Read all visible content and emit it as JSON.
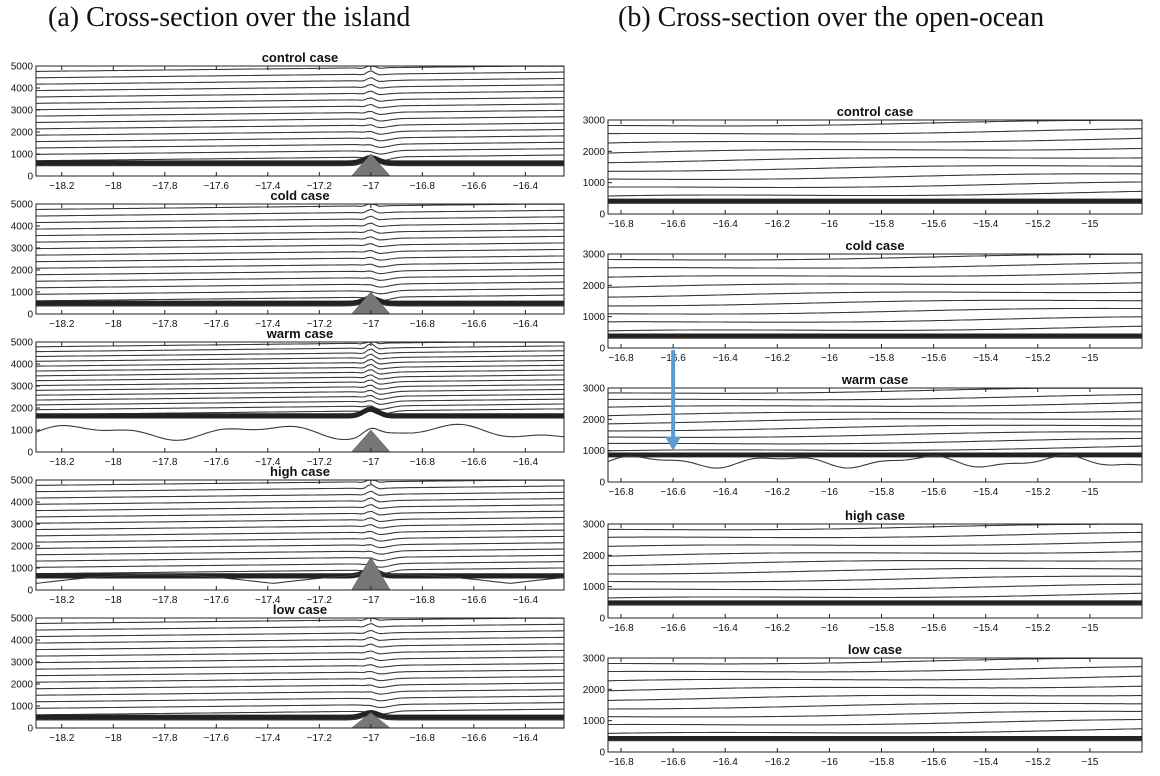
{
  "headings": {
    "left": "(a) Cross-section over the island",
    "right": "(b) Cross-section over the open-ocean"
  },
  "colors": {
    "contour": "#3a3a3a",
    "mountain": "#777777",
    "arrow": "#5b9bd5"
  },
  "chart_data": [
    {
      "id": "a-control",
      "column": "left",
      "type": "contour",
      "title": "control case",
      "x_ticks": [
        -18.2,
        -18,
        -17.8,
        -17.6,
        -17.4,
        -17.2,
        -17,
        -16.8,
        -16.6,
        -16.4
      ],
      "xlim": [
        -18.3,
        -16.25
      ],
      "y_ticks": [
        0,
        1000,
        2000,
        3000,
        4000,
        5000
      ],
      "ylim": [
        0,
        5000
      ],
      "inversion_height": 650,
      "inversion_profile": "flat",
      "island_center": -17.0,
      "island_peak": 1000,
      "wave_amplitude": 350
    },
    {
      "id": "a-cold",
      "column": "left",
      "type": "contour",
      "title": "cold case",
      "x_ticks": [
        -18.2,
        -18,
        -17.8,
        -17.6,
        -17.4,
        -17.2,
        -17,
        -16.8,
        -16.6,
        -16.4
      ],
      "xlim": [
        -18.3,
        -16.25
      ],
      "y_ticks": [
        0,
        1000,
        2000,
        3000,
        4000,
        5000
      ],
      "ylim": [
        0,
        5000
      ],
      "inversion_height": 550,
      "inversion_profile": "flat",
      "island_center": -17.0,
      "island_peak": 1000,
      "wave_amplitude": 330
    },
    {
      "id": "a-warm",
      "column": "left",
      "type": "contour",
      "title": "warm case",
      "x_ticks": [
        -18.2,
        -18,
        -17.8,
        -17.6,
        -17.4,
        -17.2,
        -17,
        -16.8,
        -16.6,
        -16.4
      ],
      "xlim": [
        -18.3,
        -16.25
      ],
      "y_ticks": [
        0,
        1000,
        2000,
        3000,
        4000,
        5000
      ],
      "ylim": [
        0,
        5000
      ],
      "inversion_height": 1700,
      "inversion_profile": "wavy-low",
      "island_center": -17.0,
      "island_peak": 1000,
      "wave_amplitude": 450
    },
    {
      "id": "a-high",
      "column": "left",
      "type": "contour",
      "title": "high case",
      "x_ticks": [
        -18.2,
        -18,
        -17.8,
        -17.6,
        -17.4,
        -17.2,
        -17,
        -16.8,
        -16.6,
        -16.4
      ],
      "xlim": [
        -18.3,
        -16.25
      ],
      "y_ticks": [
        0,
        1000,
        2000,
        3000,
        4000,
        5000
      ],
      "ylim": [
        0,
        5000
      ],
      "inversion_height": 700,
      "inversion_profile": "lobed",
      "island_center": -17.0,
      "island_peak": 1500,
      "wave_amplitude": 380
    },
    {
      "id": "a-low",
      "column": "left",
      "type": "contour",
      "title": "low case",
      "x_ticks": [
        -18.2,
        -18,
        -17.8,
        -17.6,
        -17.4,
        -17.2,
        -17,
        -16.8,
        -16.6,
        -16.4
      ],
      "xlim": [
        -18.3,
        -16.25
      ],
      "y_ticks": [
        0,
        1000,
        2000,
        3000,
        4000,
        5000
      ],
      "ylim": [
        0,
        5000
      ],
      "inversion_height": 550,
      "inversion_profile": "flat",
      "island_center": -17.0,
      "island_peak": 700,
      "wave_amplitude": 300
    },
    {
      "id": "b-control",
      "column": "right",
      "type": "contour",
      "title": "control case",
      "x_ticks": [
        -16.8,
        -16.6,
        -16.4,
        -16.2,
        -16,
        -15.8,
        -15.6,
        -15.4,
        -15.2,
        -15
      ],
      "xlim": [
        -16.85,
        -14.8
      ],
      "y_ticks": [
        0,
        1000,
        2000,
        3000
      ],
      "ylim": [
        0,
        3000
      ],
      "inversion_height": 450,
      "inversion_profile": "flat"
    },
    {
      "id": "b-cold",
      "column": "right",
      "type": "contour",
      "title": "cold case",
      "x_ticks": [
        -16.8,
        -16.6,
        -16.4,
        -16.2,
        -16,
        -15.8,
        -15.6,
        -15.4,
        -15.2,
        -15
      ],
      "xlim": [
        -16.85,
        -14.8
      ],
      "y_ticks": [
        0,
        1000,
        2000,
        3000
      ],
      "ylim": [
        0,
        3000
      ],
      "inversion_height": 420,
      "inversion_profile": "flat"
    },
    {
      "id": "b-warm",
      "column": "right",
      "type": "contour",
      "title": "warm case",
      "x_ticks": [
        -16.8,
        -16.6,
        -16.4,
        -16.2,
        -16,
        -15.8,
        -15.6,
        -15.4,
        -15.2,
        -15
      ],
      "xlim": [
        -16.85,
        -14.8
      ],
      "y_ticks": [
        0,
        1000,
        2000,
        3000
      ],
      "ylim": [
        0,
        3000
      ],
      "inversion_height": 900,
      "inversion_profile": "wavy",
      "arrow_x": -16.6,
      "arrow_y": 1000
    },
    {
      "id": "b-high",
      "column": "right",
      "type": "contour",
      "title": "high case",
      "x_ticks": [
        -16.8,
        -16.6,
        -16.4,
        -16.2,
        -16,
        -15.8,
        -15.6,
        -15.4,
        -15.2,
        -15
      ],
      "xlim": [
        -16.85,
        -14.8
      ],
      "y_ticks": [
        0,
        1000,
        2000,
        3000
      ],
      "ylim": [
        0,
        3000
      ],
      "inversion_height": 520,
      "inversion_profile": "flat"
    },
    {
      "id": "b-low",
      "column": "right",
      "type": "contour",
      "title": "low case",
      "x_ticks": [
        -16.8,
        -16.6,
        -16.4,
        -16.2,
        -16,
        -15.8,
        -15.6,
        -15.4,
        -15.2,
        -15
      ],
      "xlim": [
        -16.85,
        -14.8
      ],
      "y_ticks": [
        0,
        1000,
        2000,
        3000
      ],
      "ylim": [
        0,
        3000
      ],
      "inversion_height": 470,
      "inversion_profile": "flat"
    }
  ]
}
